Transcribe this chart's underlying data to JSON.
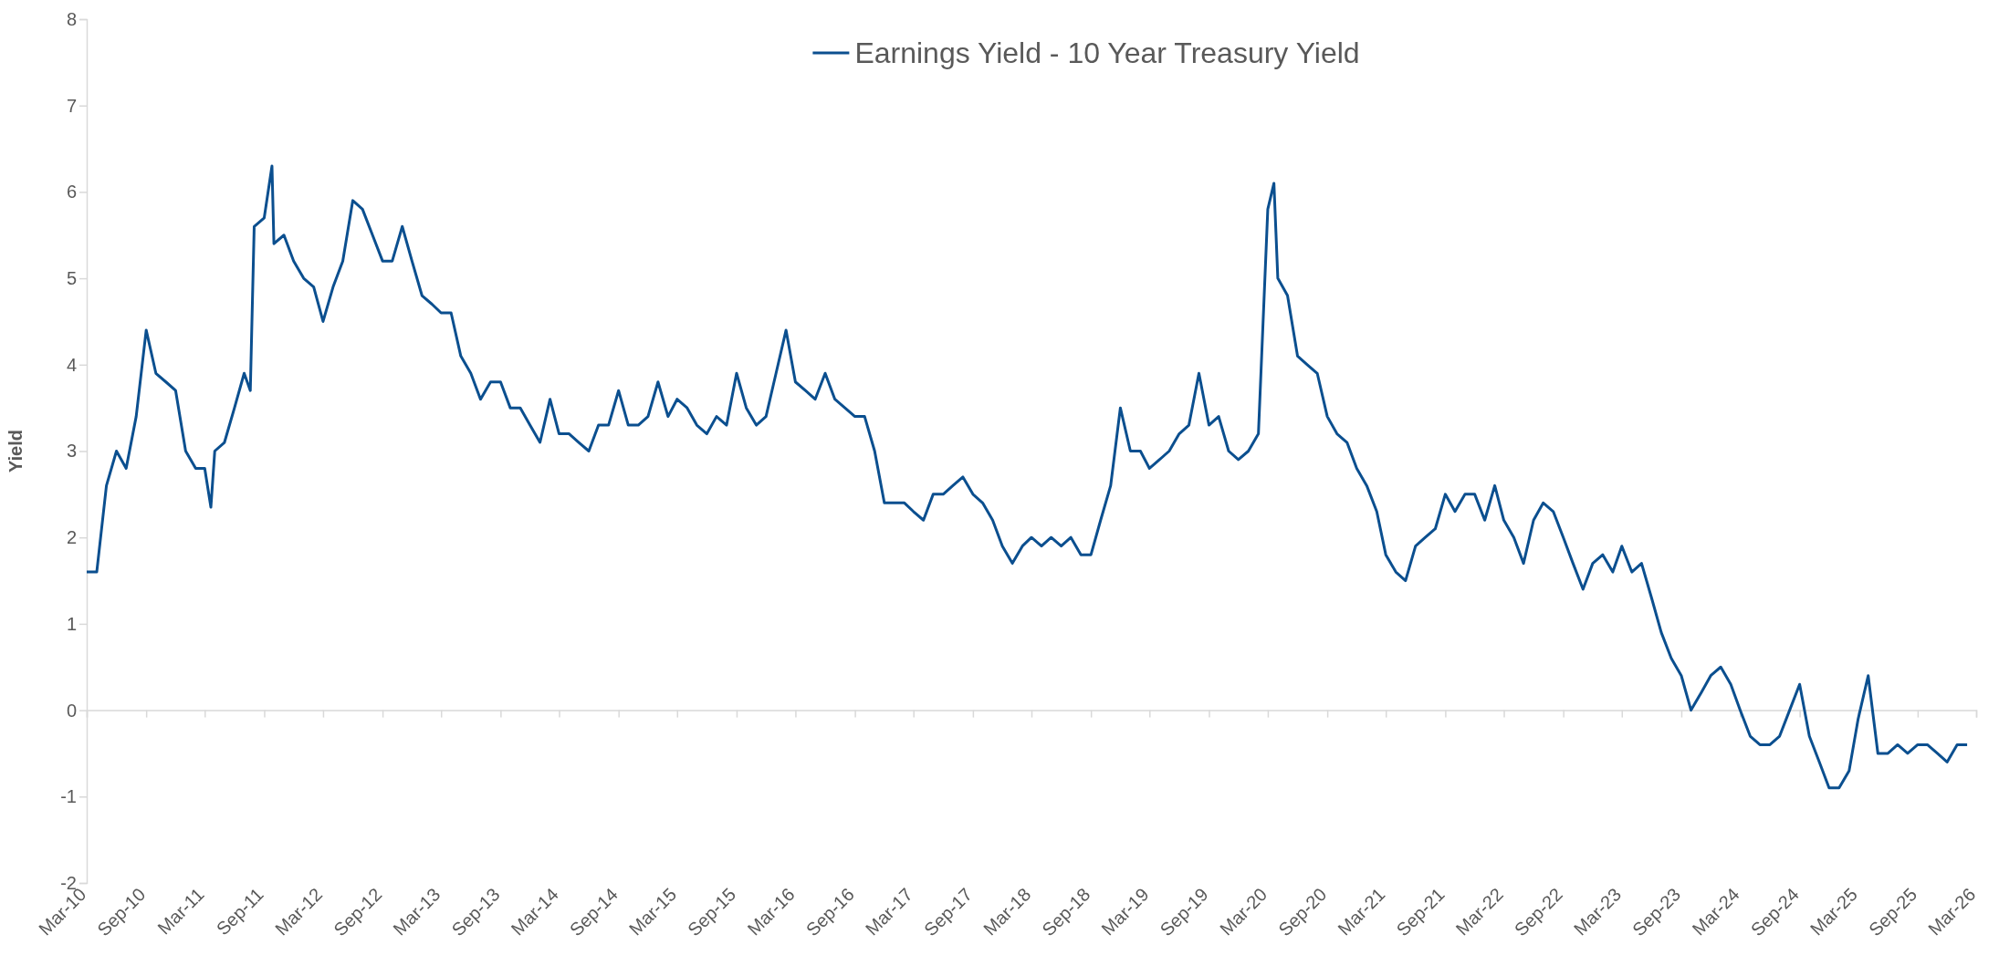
{
  "chart_data": {
    "type": "line",
    "ylabel": "Yield",
    "legend": "top",
    "grid": false,
    "line_style": "solid",
    "marker": "none",
    "ylim": [
      -2,
      8
    ],
    "yticks": [
      -2,
      -1,
      0,
      1,
      2,
      3,
      4,
      5,
      6,
      7,
      8
    ],
    "xlim": [
      "2010-03",
      "2026-03"
    ],
    "xticks": [
      {
        "value": "2010-03",
        "label": "Mar-10"
      },
      {
        "value": "2010-09",
        "label": "Sep-10"
      },
      {
        "value": "2011-03",
        "label": "Mar-11"
      },
      {
        "value": "2011-09",
        "label": "Sep-11"
      },
      {
        "value": "2012-03",
        "label": "Mar-12"
      },
      {
        "value": "2012-09",
        "label": "Sep-12"
      },
      {
        "value": "2013-03",
        "label": "Mar-13"
      },
      {
        "value": "2013-09",
        "label": "Sep-13"
      },
      {
        "value": "2014-03",
        "label": "Mar-14"
      },
      {
        "value": "2014-09",
        "label": "Sep-14"
      },
      {
        "value": "2015-03",
        "label": "Mar-15"
      },
      {
        "value": "2015-09",
        "label": "Sep-15"
      },
      {
        "value": "2016-03",
        "label": "Mar-16"
      },
      {
        "value": "2016-09",
        "label": "Sep-16"
      },
      {
        "value": "2017-03",
        "label": "Mar-17"
      },
      {
        "value": "2017-09",
        "label": "Sep-17"
      },
      {
        "value": "2018-03",
        "label": "Mar-18"
      },
      {
        "value": "2018-09",
        "label": "Sep-18"
      },
      {
        "value": "2019-03",
        "label": "Mar-19"
      },
      {
        "value": "2019-09",
        "label": "Sep-19"
      },
      {
        "value": "2020-03",
        "label": "Mar-20"
      },
      {
        "value": "2020-09",
        "label": "Sep-20"
      },
      {
        "value": "2021-03",
        "label": "Mar-21"
      },
      {
        "value": "2021-09",
        "label": "Sep-21"
      },
      {
        "value": "2022-03",
        "label": "Mar-22"
      },
      {
        "value": "2022-09",
        "label": "Sep-22"
      },
      {
        "value": "2023-03",
        "label": "Mar-23"
      },
      {
        "value": "2023-09",
        "label": "Sep-23"
      },
      {
        "value": "2024-03",
        "label": "Mar-24"
      },
      {
        "value": "2024-09",
        "label": "Sep-24"
      },
      {
        "value": "2025-03",
        "label": "Mar-25"
      },
      {
        "value": "2025-09",
        "label": "Sep-25"
      },
      {
        "value": "2026-03",
        "label": "Mar-26"
      }
    ],
    "x": [
      "2010-03",
      "2010-04",
      "2010-05",
      "2010-06",
      "2010-07",
      "2010-08",
      "2010-09",
      "2010-10",
      "2010-11",
      "2010-12",
      "2011-01",
      "2011-02",
      "2011-03",
      "2011-03-20",
      "2011-04",
      "2011-05",
      "2011-06",
      "2011-07",
      "2011-07-20",
      "2011-08",
      "2011-09",
      "2011-09-25",
      "2011-10",
      "2011-11",
      "2011-12",
      "2012-01",
      "2012-02",
      "2012-03",
      "2012-04",
      "2012-05",
      "2012-06",
      "2012-07",
      "2012-08",
      "2012-09",
      "2012-10",
      "2012-11",
      "2012-12",
      "2013-01",
      "2013-02",
      "2013-03",
      "2013-04",
      "2013-05",
      "2013-06",
      "2013-07",
      "2013-08",
      "2013-09",
      "2013-10",
      "2013-11",
      "2013-12",
      "2014-01",
      "2014-02",
      "2014-03",
      "2014-04",
      "2014-05",
      "2014-06",
      "2014-07",
      "2014-08",
      "2014-09",
      "2014-10",
      "2014-11",
      "2014-12",
      "2015-01",
      "2015-02",
      "2015-03",
      "2015-04",
      "2015-05",
      "2015-06",
      "2015-07",
      "2015-08",
      "2015-09",
      "2015-10",
      "2015-11",
      "2015-12",
      "2016-01",
      "2016-02",
      "2016-03",
      "2016-04",
      "2016-05",
      "2016-06",
      "2016-07",
      "2016-08",
      "2016-09",
      "2016-10",
      "2016-11",
      "2016-12",
      "2017-01",
      "2017-02",
      "2017-03",
      "2017-04",
      "2017-05",
      "2017-06",
      "2017-07",
      "2017-08",
      "2017-09",
      "2017-10",
      "2017-11",
      "2017-12",
      "2018-01",
      "2018-02",
      "2018-03",
      "2018-04",
      "2018-05",
      "2018-06",
      "2018-07",
      "2018-08",
      "2018-09",
      "2018-10",
      "2018-11",
      "2018-12",
      "2019-01",
      "2019-02",
      "2019-03",
      "2019-04",
      "2019-05",
      "2019-06",
      "2019-07",
      "2019-08",
      "2019-09",
      "2019-10",
      "2019-11",
      "2019-12",
      "2020-01",
      "2020-02",
      "2020-03",
      "2020-03-20",
      "2020-04",
      "2020-05",
      "2020-06",
      "2020-07",
      "2020-08",
      "2020-09",
      "2020-10",
      "2020-11",
      "2020-12",
      "2021-01",
      "2021-02",
      "2021-03",
      "2021-04",
      "2021-05",
      "2021-06",
      "2021-07",
      "2021-08",
      "2021-09",
      "2021-10",
      "2021-11",
      "2021-12",
      "2022-01",
      "2022-02",
      "2022-03",
      "2022-04",
      "2022-05",
      "2022-06",
      "2022-07",
      "2022-08",
      "2022-09",
      "2022-10",
      "2022-11",
      "2022-12",
      "2023-01",
      "2023-02",
      "2023-03",
      "2023-04",
      "2023-05",
      "2023-06",
      "2023-07",
      "2023-08",
      "2023-09",
      "2023-10",
      "2023-11",
      "2023-12",
      "2024-01",
      "2024-02",
      "2024-03",
      "2024-04",
      "2024-05",
      "2024-06",
      "2024-07",
      "2024-08",
      "2024-09",
      "2024-10",
      "2024-11",
      "2024-12",
      "2025-01",
      "2025-02",
      "2025-03",
      "2025-04",
      "2025-05",
      "2025-06",
      "2025-07",
      "2025-08",
      "2025-09",
      "2025-10",
      "2025-11",
      "2025-12",
      "2026-01",
      "2026-02"
    ],
    "series": [
      {
        "name": "Earnings Yield - 10 Year Treasury Yield",
        "color": "#0b4f8f",
        "values": [
          1.6,
          1.6,
          2.6,
          3.0,
          2.8,
          3.4,
          4.4,
          3.9,
          3.8,
          3.7,
          3.0,
          2.8,
          2.8,
          2.35,
          3.0,
          3.1,
          3.5,
          3.9,
          3.7,
          5.6,
          5.7,
          6.3,
          5.4,
          5.5,
          5.2,
          5.0,
          4.9,
          4.5,
          4.9,
          5.2,
          5.9,
          5.8,
          5.5,
          5.2,
          5.2,
          5.6,
          5.2,
          4.8,
          4.7,
          4.6,
          4.6,
          4.1,
          3.9,
          3.6,
          3.8,
          3.8,
          3.5,
          3.5,
          3.3,
          3.1,
          3.6,
          3.2,
          3.2,
          3.1,
          3.0,
          3.3,
          3.3,
          3.7,
          3.3,
          3.3,
          3.4,
          3.8,
          3.4,
          3.6,
          3.5,
          3.3,
          3.2,
          3.4,
          3.3,
          3.9,
          3.5,
          3.3,
          3.4,
          3.9,
          4.4,
          3.8,
          3.7,
          3.6,
          3.9,
          3.6,
          3.5,
          3.4,
          3.4,
          3.0,
          2.4,
          2.4,
          2.4,
          2.3,
          2.2,
          2.5,
          2.5,
          2.6,
          2.7,
          2.5,
          2.4,
          2.2,
          1.9,
          1.7,
          1.9,
          2.0,
          1.9,
          2.0,
          1.9,
          2.0,
          1.8,
          1.8,
          2.2,
          2.6,
          3.5,
          3.0,
          3.0,
          2.8,
          2.9,
          3.0,
          3.2,
          3.3,
          3.9,
          3.3,
          3.4,
          3.0,
          2.9,
          3.0,
          3.2,
          5.8,
          6.1,
          5.0,
          4.8,
          4.1,
          4.0,
          3.9,
          3.4,
          3.2,
          3.1,
          2.8,
          2.6,
          2.3,
          1.8,
          1.6,
          1.5,
          1.9,
          2.0,
          2.1,
          2.5,
          2.3,
          2.5,
          2.5,
          2.2,
          2.6,
          2.2,
          2.0,
          1.7,
          2.2,
          2.4,
          2.3,
          2.0,
          1.7,
          1.4,
          1.7,
          1.8,
          1.6,
          1.9,
          1.6,
          1.7,
          1.3,
          0.9,
          0.6,
          0.4,
          0.0,
          0.2,
          0.4,
          0.5,
          0.3,
          0.0,
          -0.3,
          -0.4,
          -0.4,
          -0.3,
          0.0,
          0.3,
          -0.3,
          -0.6,
          -0.9,
          -0.9,
          -0.7,
          -0.1,
          0.4,
          -0.5,
          -0.5,
          -0.4,
          -0.5,
          -0.4,
          -0.4,
          -0.5,
          -0.6,
          -0.4,
          -0.4
        ]
      }
    ]
  }
}
